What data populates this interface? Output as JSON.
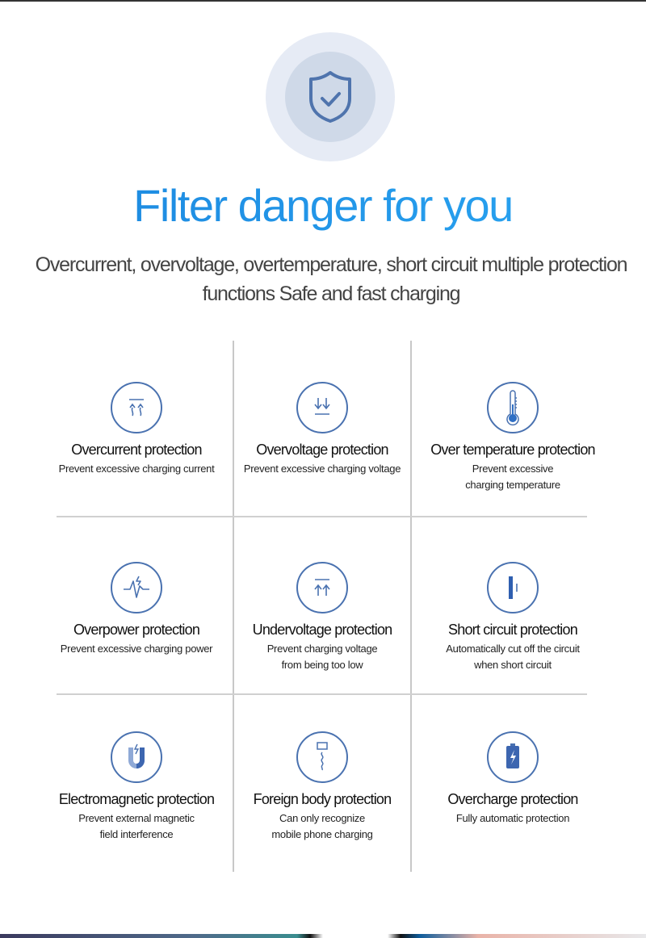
{
  "hero": {
    "icon": "shield-check-icon",
    "headline": "Filter danger for you",
    "subtitle": "Overcurrent, overvoltage, overtemperature, short circuit multiple protection functions Safe and fast charging"
  },
  "colors": {
    "accent": "#1b86de",
    "icon_stroke": "#4a72b0",
    "text": "#444444"
  },
  "features": [
    {
      "icon": "overcurrent-icon",
      "title": "Overcurrent protection",
      "desc": "Prevent excessive charging current"
    },
    {
      "icon": "overvoltage-icon",
      "title": "Overvoltage protection",
      "desc": "Prevent excessive charging voltage"
    },
    {
      "icon": "thermometer-icon",
      "title": "Over temperature protection",
      "desc": "Prevent excessive\ncharging temperature"
    },
    {
      "icon": "overpower-icon",
      "title": "Overpower protection",
      "desc": "Prevent excessive charging power"
    },
    {
      "icon": "undervoltage-icon",
      "title": "Undervoltage protection",
      "desc": "Prevent charging voltage\nfrom being too low"
    },
    {
      "icon": "short-circuit-icon",
      "title": "Short circuit protection",
      "desc": "Automatically cut off the circuit\nwhen short circuit"
    },
    {
      "icon": "magnet-icon",
      "title": "Electromagnetic protection",
      "desc": "Prevent external magnetic\nfield interference"
    },
    {
      "icon": "foreign-body-icon",
      "title": "Foreign body protection",
      "desc": "Can only recognize\nmobile phone charging"
    },
    {
      "icon": "battery-bolt-icon",
      "title": "Overcharge protection",
      "desc": "Fully automatic protection"
    }
  ]
}
